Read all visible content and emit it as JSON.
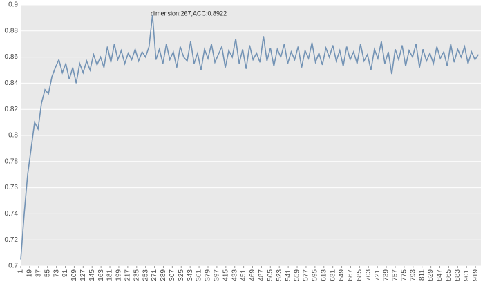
{
  "chart_data": {
    "type": "line",
    "annotations": [
      "dimension:267,ACC:0.8922"
    ],
    "x": [
      1,
      8,
      15,
      22,
      29,
      36,
      43,
      50,
      57,
      64,
      71,
      78,
      85,
      92,
      99,
      106,
      113,
      120,
      127,
      134,
      141,
      148,
      155,
      162,
      169,
      176,
      183,
      190,
      197,
      204,
      211,
      218,
      225,
      232,
      239,
      246,
      253,
      260,
      267,
      274,
      281,
      288,
      295,
      302,
      309,
      316,
      323,
      330,
      337,
      344,
      351,
      358,
      365,
      372,
      379,
      386,
      393,
      400,
      407,
      414,
      421,
      428,
      435,
      442,
      449,
      456,
      463,
      470,
      477,
      484,
      491,
      498,
      505,
      512,
      519,
      526,
      533,
      540,
      547,
      554,
      561,
      568,
      575,
      582,
      589,
      596,
      603,
      610,
      617,
      624,
      631,
      638,
      645,
      652,
      659,
      666,
      673,
      680,
      687,
      694,
      701,
      708,
      715,
      722,
      729,
      736,
      743,
      750,
      757,
      764,
      771,
      778,
      785,
      792,
      799,
      806,
      813,
      820,
      827,
      834,
      841,
      848,
      855,
      862,
      869,
      876,
      883,
      890,
      897,
      904,
      911,
      918,
      925
    ],
    "series": [
      {
        "color": "#7393b5",
        "values": [
          0.705,
          0.74,
          0.77,
          0.79,
          0.81,
          0.805,
          0.825,
          0.835,
          0.832,
          0.845,
          0.852,
          0.858,
          0.848,
          0.855,
          0.843,
          0.852,
          0.84,
          0.855,
          0.848,
          0.857,
          0.85,
          0.862,
          0.854,
          0.86,
          0.852,
          0.868,
          0.856,
          0.87,
          0.858,
          0.865,
          0.855,
          0.863,
          0.858,
          0.866,
          0.857,
          0.864,
          0.86,
          0.868,
          0.8922,
          0.858,
          0.866,
          0.855,
          0.87,
          0.858,
          0.864,
          0.852,
          0.868,
          0.86,
          0.857,
          0.872,
          0.855,
          0.863,
          0.85,
          0.866,
          0.859,
          0.87,
          0.856,
          0.862,
          0.868,
          0.852,
          0.865,
          0.86,
          0.874,
          0.855,
          0.866,
          0.851,
          0.869,
          0.858,
          0.863,
          0.856,
          0.876,
          0.857,
          0.867,
          0.853,
          0.866,
          0.86,
          0.87,
          0.855,
          0.864,
          0.858,
          0.868,
          0.852,
          0.865,
          0.859,
          0.871,
          0.856,
          0.863,
          0.854,
          0.867,
          0.86,
          0.869,
          0.857,
          0.865,
          0.853,
          0.868,
          0.858,
          0.864,
          0.855,
          0.87,
          0.857,
          0.862,
          0.85,
          0.866,
          0.859,
          0.872,
          0.855,
          0.864,
          0.847,
          0.866,
          0.858,
          0.869,
          0.853,
          0.865,
          0.86,
          0.87,
          0.852,
          0.866,
          0.857,
          0.863,
          0.855,
          0.868,
          0.859,
          0.864,
          0.853,
          0.87,
          0.856,
          0.866,
          0.86,
          0.868,
          0.855,
          0.864,
          0.858,
          0.862
        ]
      }
    ],
    "xlim": [
      1,
      930
    ],
    "xticks": [
      1,
      19,
      37,
      55,
      73,
      91,
      109,
      127,
      145,
      163,
      181,
      199,
      217,
      235,
      253,
      271,
      289,
      307,
      325,
      343,
      361,
      379,
      397,
      415,
      433,
      451,
      469,
      487,
      505,
      523,
      541,
      559,
      577,
      595,
      613,
      631,
      649,
      667,
      685,
      703,
      721,
      739,
      757,
      775,
      793,
      811,
      829,
      847,
      865,
      883,
      901,
      919
    ],
    "ylim": [
      0.7,
      0.9
    ],
    "yticks": [
      0.7,
      0.72,
      0.74,
      0.76,
      0.78,
      0.8,
      0.82,
      0.84,
      0.86,
      0.88,
      0.9
    ],
    "grid": true
  }
}
